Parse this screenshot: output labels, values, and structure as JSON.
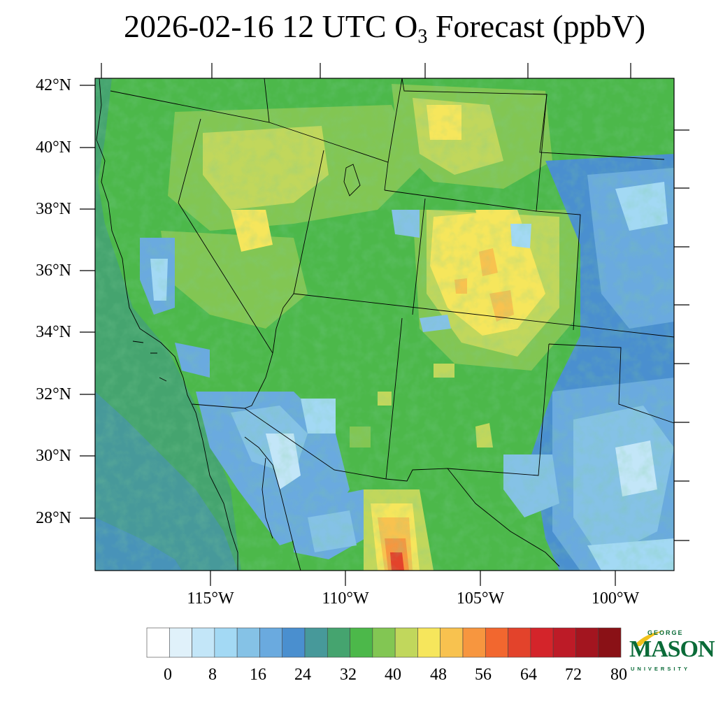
{
  "map": {
    "title_prefix": "2026-02-16 12 UTC O",
    "title_sub": "3",
    "title_suffix": " Forecast (ppbV)",
    "lat_labels": [
      "42°N",
      "40°N",
      "38°N",
      "36°N",
      "34°N",
      "32°N",
      "30°N",
      "28°N"
    ],
    "lon_labels": [
      "115°W",
      "110°W",
      "105°W",
      "100°W"
    ],
    "colorbar": {
      "labels": [
        "0",
        "8",
        "16",
        "24",
        "32",
        "40",
        "48",
        "56",
        "64",
        "72",
        "80"
      ],
      "colors": [
        "#ffffff",
        "#e0f1fa",
        "#c3e6f8",
        "#a3d9f4",
        "#85c2e6",
        "#6aaadf",
        "#4a8fcf",
        "#47999a",
        "#45a46f",
        "#4cb84a",
        "#82c653",
        "#c1d75c",
        "#f6e65c",
        "#f8c24f",
        "#f7963f",
        "#f2672f",
        "#e3432b",
        "#d4242a",
        "#bd1b27",
        "#a3151f",
        "#8a1116"
      ]
    },
    "logo": {
      "line1": "GEORGE",
      "line2": "MASON",
      "line3": "UNIVERSITY",
      "accent": "#f1c21b",
      "brand": "#0a6b38"
    }
  }
}
